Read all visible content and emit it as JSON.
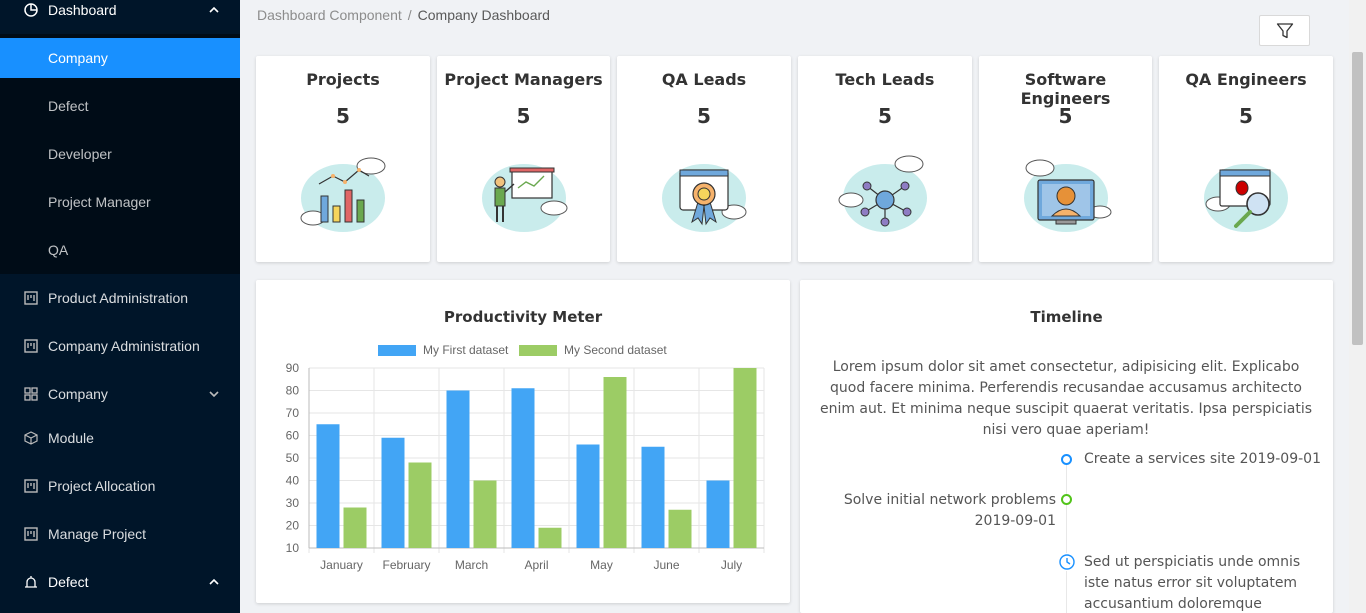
{
  "sidebar": {
    "dashboard": "Dashboard",
    "sub_items": [
      "Company",
      "Defect",
      "Developer",
      "Project Manager",
      "QA"
    ],
    "items": [
      {
        "label": "Product Administration",
        "icon": "project-icon"
      },
      {
        "label": "Company Administration",
        "icon": "project-icon"
      },
      {
        "label": "Company",
        "icon": "appstore-icon"
      },
      {
        "label": "Module",
        "icon": "code-sandbox-icon"
      },
      {
        "label": "Project Allocation",
        "icon": "project-icon"
      },
      {
        "label": "Manage Project",
        "icon": "project-icon"
      },
      {
        "label": "Defect",
        "icon": "alarm-icon"
      }
    ]
  },
  "breadcrumb": {
    "root": "Dashboard Component",
    "separator": "/",
    "current": "Company Dashboard"
  },
  "stats": [
    {
      "title": "Projects",
      "value": "5"
    },
    {
      "title": "Project Managers",
      "value": "5"
    },
    {
      "title": "QA Leads",
      "value": "5"
    },
    {
      "title": "Tech Leads",
      "value": "5"
    },
    {
      "title": "Software Engineers",
      "value": "5"
    },
    {
      "title": "QA Engineers",
      "value": "5"
    }
  ],
  "productivity": {
    "title": "Productivity Meter"
  },
  "chart_data": {
    "type": "bar",
    "title": "Productivity Meter",
    "categories": [
      "January",
      "February",
      "March",
      "April",
      "May",
      "June",
      "July"
    ],
    "series": [
      {
        "name": "My First dataset",
        "color": "#42a5f5",
        "values": [
          65,
          59,
          80,
          81,
          56,
          55,
          40
        ]
      },
      {
        "name": "My Second dataset",
        "color": "#9ccc65",
        "values": [
          28,
          48,
          40,
          19,
          86,
          27,
          90
        ]
      }
    ],
    "ylim": [
      10,
      90
    ],
    "yticks": [
      "90",
      "80",
      "70",
      "60",
      "50",
      "40",
      "30",
      "20",
      "10"
    ],
    "legend": "top",
    "grid": true
  },
  "timeline": {
    "title": "Timeline",
    "description": "Lorem ipsum dolor sit amet consectetur, adipisicing elit. Explicabo quod facere minima. Perferendis recusandae accusamus architecto enim aut. Et minima neque suscipit quaerat veritatis. Ipsa perspiciatis nisi vero quae aperiam!",
    "events": [
      {
        "text": "Create a services site 2019-09-01",
        "color": "#1890ff"
      },
      {
        "text": "Solve initial network problems 2019-09-01",
        "color": "#52c41a"
      },
      {
        "text": "Sed ut perspiciatis unde omnis iste natus error sit voluptatem accusantium doloremque laudantium, totam rem",
        "icon": "clock-icon",
        "color": "#1890ff"
      }
    ]
  }
}
